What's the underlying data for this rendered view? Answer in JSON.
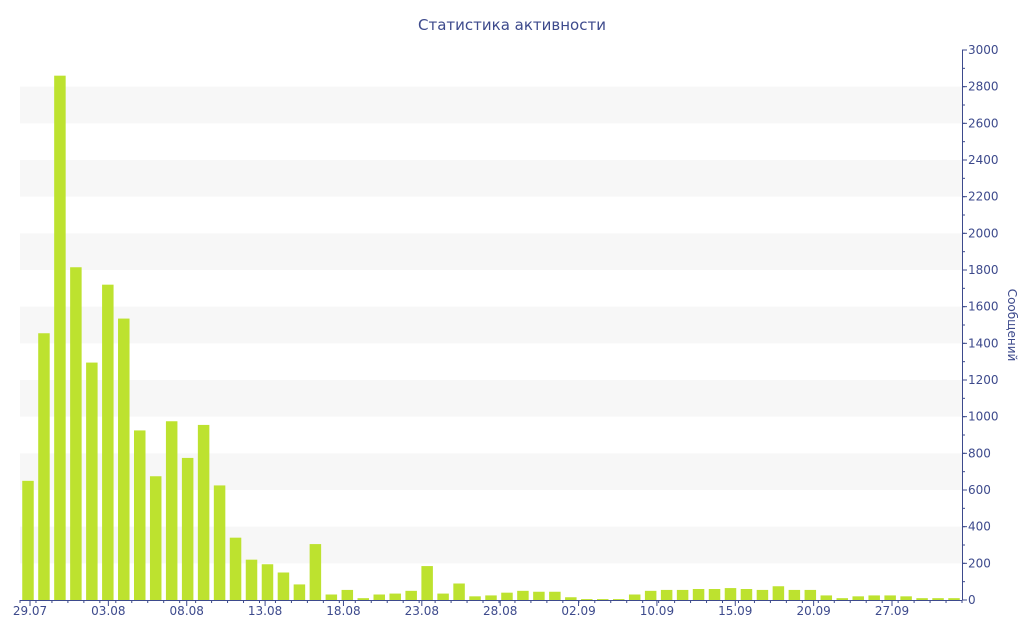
{
  "chart_data": {
    "type": "bar",
    "title": "Статистика активности",
    "xlabel": "",
    "ylabel": "Сообщений",
    "ylim": [
      0,
      3000
    ],
    "yticks": [
      0,
      200,
      400,
      600,
      800,
      1000,
      1200,
      1400,
      1600,
      1800,
      2000,
      2200,
      2400,
      2600,
      2800,
      3000
    ],
    "xtick_labels": [
      "29.07",
      "03.08",
      "08.08",
      "13.08",
      "18.08",
      "23.08",
      "28.08",
      "02.09",
      "10.09",
      "15.09",
      "20.09",
      "27.09"
    ],
    "axis_side": "right",
    "grid": "alternating horizontal bands",
    "colors": {
      "bar": "#bde22f",
      "band": "#f7f7f7",
      "text": "#3d4a8c",
      "axis": "#3d4a8c"
    },
    "values": [
      650,
      1455,
      2860,
      1815,
      1295,
      1720,
      1535,
      925,
      675,
      975,
      775,
      955,
      625,
      340,
      220,
      195,
      150,
      85,
      305,
      30,
      55,
      10,
      30,
      35,
      50,
      185,
      35,
      90,
      20,
      25,
      40,
      50,
      45,
      45,
      15,
      5,
      5,
      5,
      30,
      50,
      55,
      55,
      60,
      60,
      65,
      60,
      55,
      75,
      55,
      55,
      25,
      10,
      20,
      25,
      25,
      20,
      10,
      10,
      10
    ]
  }
}
